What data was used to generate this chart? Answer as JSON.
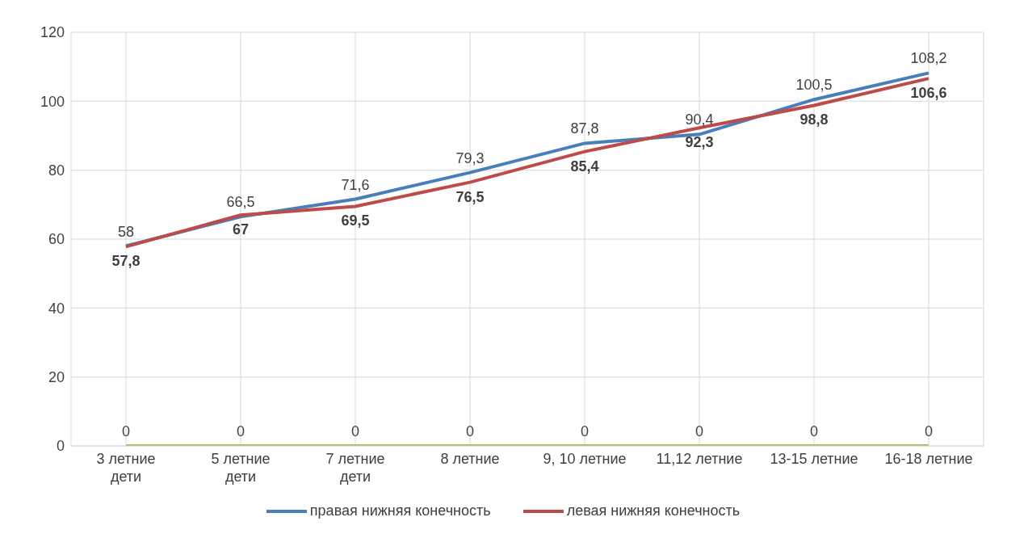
{
  "chart_data": {
    "type": "line",
    "categories": [
      "3 летние дети",
      "5 летние дети",
      "7 летние дети",
      "8 летние",
      "9, 10 летние",
      "11,12 летние",
      "13-15 летние",
      "16-18 летние"
    ],
    "series": [
      {
        "name": "правая нижняя конечность",
        "color": "#4a7ebb",
        "values": [
          58,
          66.5,
          71.6,
          79.3,
          87.8,
          90.4,
          100.5,
          108.2
        ],
        "value_labels": [
          "58",
          "66,5",
          "71,6",
          "79,3",
          "87,8",
          "90,4",
          "100,5",
          "108,2"
        ]
      },
      {
        "name": "левая нижняя конечность",
        "color": "#be4b48",
        "values": [
          57.8,
          67,
          69.5,
          76.5,
          85.4,
          92.3,
          98.8,
          106.6
        ],
        "value_labels": [
          "57,8",
          "67",
          "69,5",
          "76,5",
          "85,4",
          "92,3",
          "98,8",
          "106,6"
        ]
      },
      {
        "color": "#9bbb59",
        "values": [
          0,
          0,
          0,
          0,
          0,
          0,
          0,
          0
        ],
        "value_labels": [
          "0",
          "0",
          "0",
          "0",
          "0",
          "0",
          "0",
          "0"
        ]
      }
    ],
    "ylim": [
      0,
      120
    ],
    "yticks": [
      0,
      20,
      40,
      60,
      80,
      100,
      120
    ],
    "grid": true,
    "legend": "bottom",
    "marker": "none",
    "line_style": "solid"
  }
}
